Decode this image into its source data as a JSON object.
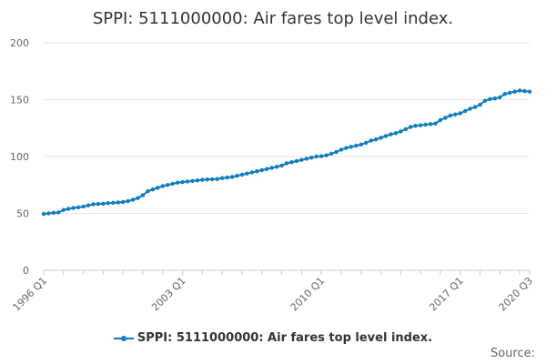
{
  "chart_data": {
    "type": "line",
    "title": "SPPI: 5111000000: Air fares top level index.",
    "xlabel": "",
    "ylabel": "",
    "ylim": [
      0,
      200
    ],
    "yticks": [
      0,
      50,
      100,
      150,
      200
    ],
    "x_tick_labels": [
      "1996 Q1",
      "2003 Q1",
      "2010 Q1",
      "2017 Q1",
      "2020 Q3"
    ],
    "grid": true,
    "legend_position": "bottom",
    "source_label": "Source:",
    "colors": {
      "series": "#0f7dc0",
      "grid": "#e6e6e6",
      "axis": "#cccccc"
    },
    "series": [
      {
        "name": "SPPI: 5111000000: Air fares top level index.",
        "x": [
          "1996 Q1",
          "1996 Q2",
          "1996 Q3",
          "1996 Q4",
          "1997 Q1",
          "1997 Q2",
          "1997 Q3",
          "1997 Q4",
          "1998 Q1",
          "1998 Q2",
          "1998 Q3",
          "1998 Q4",
          "1999 Q1",
          "1999 Q2",
          "1999 Q3",
          "1999 Q4",
          "2000 Q1",
          "2000 Q2",
          "2000 Q3",
          "2000 Q4",
          "2001 Q1",
          "2001 Q2",
          "2001 Q3",
          "2001 Q4",
          "2002 Q1",
          "2002 Q2",
          "2002 Q3",
          "2002 Q4",
          "2003 Q1",
          "2003 Q2",
          "2003 Q3",
          "2003 Q4",
          "2004 Q1",
          "2004 Q2",
          "2004 Q3",
          "2004 Q4",
          "2005 Q1",
          "2005 Q2",
          "2005 Q3",
          "2005 Q4",
          "2006 Q1",
          "2006 Q2",
          "2006 Q3",
          "2006 Q4",
          "2007 Q1",
          "2007 Q2",
          "2007 Q3",
          "2007 Q4",
          "2008 Q1",
          "2008 Q2",
          "2008 Q3",
          "2008 Q4",
          "2009 Q1",
          "2009 Q2",
          "2009 Q3",
          "2009 Q4",
          "2010 Q1",
          "2010 Q2",
          "2010 Q3",
          "2010 Q4",
          "2011 Q1",
          "2011 Q2",
          "2011 Q3",
          "2011 Q4",
          "2012 Q1",
          "2012 Q2",
          "2012 Q3",
          "2012 Q4",
          "2013 Q1",
          "2013 Q2",
          "2013 Q3",
          "2013 Q4",
          "2014 Q1",
          "2014 Q2",
          "2014 Q3",
          "2014 Q4",
          "2015 Q1",
          "2015 Q2",
          "2015 Q3",
          "2015 Q4",
          "2016 Q1",
          "2016 Q2",
          "2016 Q3",
          "2016 Q4",
          "2017 Q1",
          "2017 Q2",
          "2017 Q3",
          "2017 Q4",
          "2018 Q1",
          "2018 Q2",
          "2018 Q3",
          "2018 Q4",
          "2019 Q1",
          "2019 Q2",
          "2019 Q3",
          "2019 Q4",
          "2020 Q1",
          "2020 Q2",
          "2020 Q3"
        ],
        "values": [
          49.5,
          50.0,
          50.5,
          50.8,
          53.0,
          54.0,
          54.8,
          55.3,
          56.0,
          57.0,
          58.0,
          58.3,
          58.5,
          59.0,
          59.3,
          59.6,
          60.0,
          60.8,
          62.0,
          63.5,
          66.0,
          69.5,
          71.0,
          72.5,
          74.0,
          75.0,
          76.0,
          77.0,
          77.5,
          78.0,
          78.5,
          79.0,
          79.5,
          79.8,
          80.0,
          80.2,
          81.0,
          81.5,
          82.0,
          83.0,
          84.0,
          85.0,
          86.0,
          87.0,
          88.0,
          89.0,
          90.0,
          91.0,
          92.0,
          94.0,
          95.0,
          96.0,
          97.0,
          98.0,
          99.0,
          100.0,
          100.3,
          101.0,
          102.5,
          104.0,
          106.0,
          107.5,
          108.5,
          109.5,
          110.5,
          112.0,
          114.0,
          115.0,
          116.5,
          118.0,
          119.5,
          120.5,
          122.0,
          124.0,
          126.0,
          127.0,
          127.5,
          128.0,
          128.5,
          129.0,
          132.0,
          134.0,
          136.0,
          137.0,
          138.0,
          140.0,
          142.0,
          143.5,
          145.5,
          149.0,
          150.5,
          151.0,
          152.0,
          155.0,
          156.0,
          157.0,
          158.0,
          157.5,
          157.0
        ]
      }
    ]
  }
}
